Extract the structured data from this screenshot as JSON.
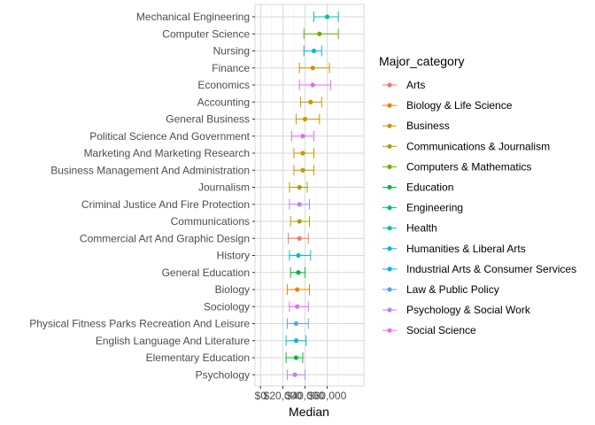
{
  "chart_data": {
    "type": "errorbar-dot",
    "xlabel": "Median",
    "ylabel": "",
    "xlim": [
      -5000,
      93000
    ],
    "xticks": [
      0,
      20000,
      40000,
      60000
    ],
    "xtick_labels": [
      "$0",
      "$20,000",
      "$40,000",
      "$60,000"
    ],
    "grid": true,
    "legend": {
      "title": "Major_category",
      "position": "right",
      "entries": [
        {
          "name": "Arts",
          "color": "#F8766D"
        },
        {
          "name": "Biology & Life Science",
          "color": "#E58700"
        },
        {
          "name": "Business",
          "color": "#C99800"
        },
        {
          "name": "Communications & Journalism",
          "color": "#A3A500"
        },
        {
          "name": "Computers & Mathematics",
          "color": "#6BB100"
        },
        {
          "name": "Education",
          "color": "#00BA38"
        },
        {
          "name": "Engineering",
          "color": "#00BF7D"
        },
        {
          "name": "Health",
          "color": "#00C0AF"
        },
        {
          "name": "Humanities & Liberal Arts",
          "color": "#00BCD8"
        },
        {
          "name": "Industrial Arts & Consumer Services",
          "color": "#00B0F6"
        },
        {
          "name": "Law & Public Policy",
          "color": "#619CFF"
        },
        {
          "name": "Psychology & Social Work",
          "color": "#B983FF"
        },
        {
          "name": "Social Science",
          "color": "#E76BF3"
        }
      ]
    },
    "points": [
      {
        "label": "Mechanical Engineering",
        "median": 60000,
        "low": 48000,
        "high": 70000,
        "color": "#00C0AF"
      },
      {
        "label": "Computer Science",
        "median": 53000,
        "low": 39000,
        "high": 70000,
        "color": "#6BB100"
      },
      {
        "label": "Nursing",
        "median": 48000,
        "low": 39000,
        "high": 55000,
        "color": "#00BCD8"
      },
      {
        "label": "Finance",
        "median": 47000,
        "low": 35000,
        "high": 62000,
        "color": "#C99800"
      },
      {
        "label": "Economics",
        "median": 47000,
        "low": 35000,
        "high": 63000,
        "color": "#E76BF3"
      },
      {
        "label": "Accounting",
        "median": 45000,
        "low": 36000,
        "high": 55000,
        "color": "#C99800"
      },
      {
        "label": "General Business",
        "median": 40000,
        "low": 32000,
        "high": 53000,
        "color": "#C99800"
      },
      {
        "label": "Political Science And Government",
        "median": 38000,
        "low": 28000,
        "high": 48000,
        "color": "#E76BF3"
      },
      {
        "label": "Marketing And Marketing Research",
        "median": 38000,
        "low": 30000,
        "high": 48000,
        "color": "#C99800"
      },
      {
        "label": "Business Management And Administration",
        "median": 38000,
        "low": 30000,
        "high": 48000,
        "color": "#C99800"
      },
      {
        "label": "Journalism",
        "median": 35000,
        "low": 26000,
        "high": 42000,
        "color": "#A3A500"
      },
      {
        "label": "Criminal Justice And Fire Protection",
        "median": 35000,
        "low": 26000,
        "high": 44000,
        "color": "#B983FF"
      },
      {
        "label": "Communications",
        "median": 35000,
        "low": 27000,
        "high": 44000,
        "color": "#A3A500"
      },
      {
        "label": "Commercial Art And Graphic Design",
        "median": 35000,
        "low": 25000,
        "high": 43000,
        "color": "#F8766D"
      },
      {
        "label": "History",
        "median": 34000,
        "low": 26000,
        "high": 45000,
        "color": "#00BCD8"
      },
      {
        "label": "General Education",
        "median": 34000,
        "low": 27000,
        "high": 40000,
        "color": "#00BA38"
      },
      {
        "label": "Biology",
        "median": 33000,
        "low": 24000,
        "high": 44000,
        "color": "#E58700"
      },
      {
        "label": "Sociology",
        "median": 33000,
        "low": 26000,
        "high": 43000,
        "color": "#E76BF3"
      },
      {
        "label": "Physical Fitness Parks Recreation And Leisure",
        "median": 32000,
        "low": 24000,
        "high": 43000,
        "color": "#619CFF"
      },
      {
        "label": "English Language And Literature",
        "median": 32000,
        "low": 23000,
        "high": 41000,
        "color": "#00BCD8"
      },
      {
        "label": "Elementary Education",
        "median": 32000,
        "low": 23000,
        "high": 38000,
        "color": "#00BA38"
      },
      {
        "label": "Psychology",
        "median": 31000,
        "low": 24000,
        "high": 40000,
        "color": "#B983FF"
      }
    ]
  }
}
